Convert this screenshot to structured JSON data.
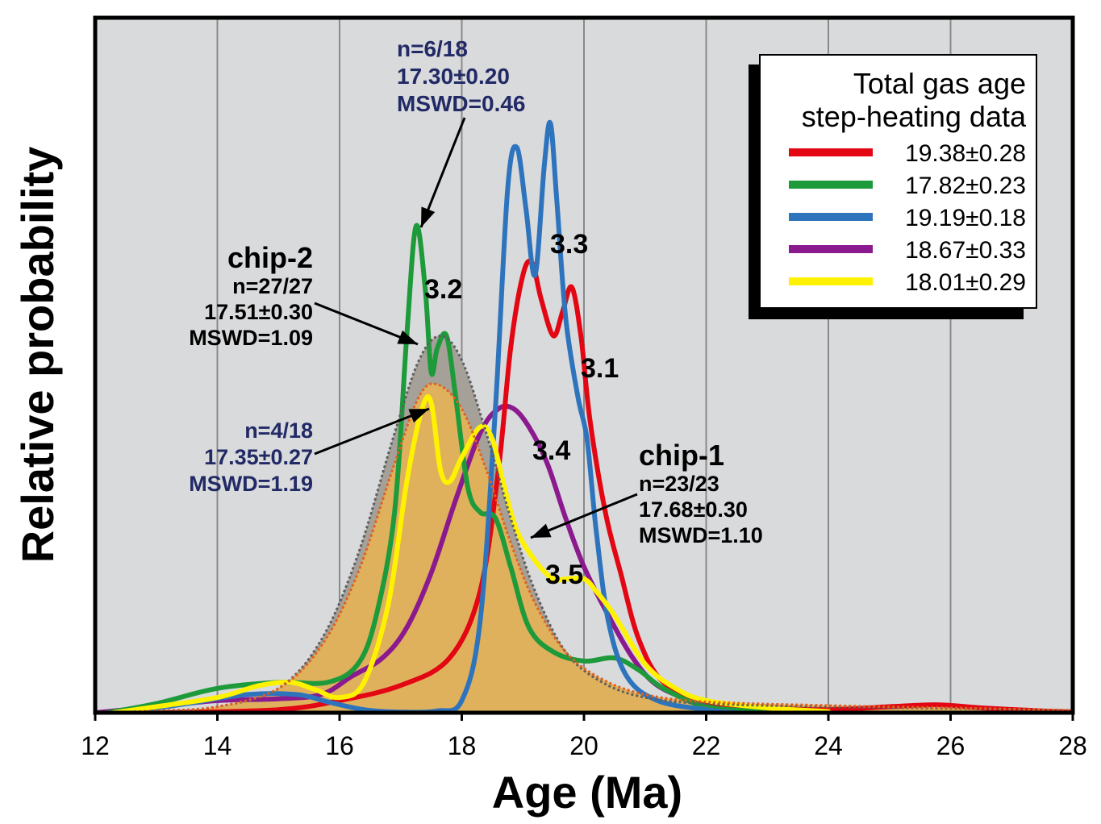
{
  "chart_data": {
    "type": "line",
    "xlabel": "Age (Ma)",
    "ylabel": "Relative probability",
    "xlim": [
      12,
      28
    ],
    "ylim": [
      0,
      1
    ],
    "x_ticks": [
      12,
      14,
      16,
      18,
      20,
      22,
      24,
      26,
      28
    ],
    "grid": "vertical",
    "legend": {
      "position": "top-right",
      "title_lines": [
        "Total gas age",
        "step-heating data"
      ],
      "entries": [
        {
          "label": "19.38±0.28",
          "color": "#e30613"
        },
        {
          "label": "17.82±0.23",
          "color": "#1d9a3a"
        },
        {
          "label": "19.19±0.18",
          "color": "#2e74bd"
        },
        {
          "label": "18.67±0.33",
          "color": "#8b1a8e"
        },
        {
          "label": "18.01±0.29",
          "color": "#fff200"
        }
      ]
    },
    "series": [
      {
        "sample": "3.1",
        "color": "#e30613",
        "points": [
          [
            13.1,
            0
          ],
          [
            15,
            0.005
          ],
          [
            16,
            0.02
          ],
          [
            17,
            0.045
          ],
          [
            17.8,
            0.09
          ],
          [
            18.3,
            0.2
          ],
          [
            18.6,
            0.4
          ],
          [
            18.8,
            0.6
          ],
          [
            19.0,
            0.72
          ],
          [
            19.15,
            0.74
          ],
          [
            19.3,
            0.68
          ],
          [
            19.5,
            0.62
          ],
          [
            19.65,
            0.66
          ],
          [
            19.8,
            0.7
          ],
          [
            19.95,
            0.62
          ],
          [
            20.1,
            0.48
          ],
          [
            20.35,
            0.33
          ],
          [
            20.6,
            0.23
          ],
          [
            20.9,
            0.12
          ],
          [
            21.3,
            0.05
          ],
          [
            22,
            0.018
          ],
          [
            23,
            0.008
          ],
          [
            24,
            0.005
          ],
          [
            25,
            0.01
          ],
          [
            25.8,
            0.013
          ],
          [
            26.5,
            0.008
          ],
          [
            27.5,
            0.003
          ],
          [
            28,
            0.001
          ]
        ]
      },
      {
        "sample": "3.2",
        "color": "#1d9a3a",
        "points": [
          [
            12.2,
            0
          ],
          [
            13,
            0.015
          ],
          [
            14,
            0.04
          ],
          [
            15,
            0.05
          ],
          [
            15.8,
            0.05
          ],
          [
            16.3,
            0.08
          ],
          [
            16.6,
            0.16
          ],
          [
            16.9,
            0.33
          ],
          [
            17.1,
            0.62
          ],
          [
            17.25,
            0.8
          ],
          [
            17.4,
            0.7
          ],
          [
            17.5,
            0.56
          ],
          [
            17.6,
            0.6
          ],
          [
            17.75,
            0.62
          ],
          [
            17.9,
            0.52
          ],
          [
            18.1,
            0.37
          ],
          [
            18.3,
            0.33
          ],
          [
            18.55,
            0.32
          ],
          [
            18.8,
            0.24
          ],
          [
            19.1,
            0.14
          ],
          [
            19.5,
            0.1
          ],
          [
            20,
            0.085
          ],
          [
            20.5,
            0.09
          ],
          [
            20.9,
            0.07
          ],
          [
            21.3,
            0.04
          ],
          [
            22,
            0.01
          ],
          [
            23,
            0.002
          ]
        ]
      },
      {
        "sample": "3.3",
        "color": "#2e74bd",
        "points": [
          [
            12.5,
            0
          ],
          [
            13.5,
            0.015
          ],
          [
            14.5,
            0.03
          ],
          [
            15.3,
            0.03
          ],
          [
            15.8,
            0.018
          ],
          [
            16.4,
            0.005
          ],
          [
            17,
            0.001
          ],
          [
            17.6,
            0.003
          ],
          [
            18.0,
            0.02
          ],
          [
            18.3,
            0.15
          ],
          [
            18.55,
            0.5
          ],
          [
            18.75,
            0.86
          ],
          [
            18.9,
            0.93
          ],
          [
            19.05,
            0.83
          ],
          [
            19.2,
            0.72
          ],
          [
            19.35,
            0.9
          ],
          [
            19.45,
            0.97
          ],
          [
            19.55,
            0.85
          ],
          [
            19.7,
            0.65
          ],
          [
            19.9,
            0.52
          ],
          [
            20.05,
            0.45
          ],
          [
            20.2,
            0.3
          ],
          [
            20.4,
            0.15
          ],
          [
            20.7,
            0.06
          ],
          [
            21.2,
            0.02
          ],
          [
            22,
            0.005
          ],
          [
            22.5,
            0
          ]
        ]
      },
      {
        "sample": "3.4",
        "color": "#8b1a8e",
        "points": [
          [
            12,
            0
          ],
          [
            13,
            0.01
          ],
          [
            14,
            0.02
          ],
          [
            15,
            0.023
          ],
          [
            15.7,
            0.03
          ],
          [
            16.2,
            0.06
          ],
          [
            16.7,
            0.09
          ],
          [
            17.1,
            0.14
          ],
          [
            17.5,
            0.23
          ],
          [
            17.9,
            0.35
          ],
          [
            18.3,
            0.46
          ],
          [
            18.6,
            0.5
          ],
          [
            18.85,
            0.5
          ],
          [
            19.1,
            0.47
          ],
          [
            19.4,
            0.41
          ],
          [
            19.7,
            0.32
          ],
          [
            20.0,
            0.24
          ],
          [
            20.4,
            0.16
          ],
          [
            20.8,
            0.09
          ],
          [
            21.2,
            0.045
          ],
          [
            21.8,
            0.02
          ],
          [
            22.5,
            0.008
          ],
          [
            23.5,
            0.002
          ]
        ]
      },
      {
        "sample": "3.5",
        "color": "#fff200",
        "points": [
          [
            12.3,
            0
          ],
          [
            13,
            0.01
          ],
          [
            14,
            0.025
          ],
          [
            14.7,
            0.045
          ],
          [
            15.2,
            0.05
          ],
          [
            15.6,
            0.038
          ],
          [
            16,
            0.025
          ],
          [
            16.4,
            0.05
          ],
          [
            16.8,
            0.18
          ],
          [
            17.1,
            0.38
          ],
          [
            17.35,
            0.5
          ],
          [
            17.5,
            0.51
          ],
          [
            17.65,
            0.4
          ],
          [
            17.8,
            0.38
          ],
          [
            18.0,
            0.42
          ],
          [
            18.3,
            0.47
          ],
          [
            18.5,
            0.45
          ],
          [
            18.7,
            0.37
          ],
          [
            18.9,
            0.3
          ],
          [
            19.2,
            0.25
          ],
          [
            19.5,
            0.22
          ],
          [
            19.7,
            0.22
          ],
          [
            20.0,
            0.22
          ],
          [
            20.2,
            0.2
          ],
          [
            20.5,
            0.16
          ],
          [
            21.0,
            0.08
          ],
          [
            21.5,
            0.04
          ],
          [
            22,
            0.02
          ],
          [
            23,
            0.008
          ],
          [
            24,
            0.002
          ]
        ]
      },
      {
        "sample": "chip-2",
        "color": "#5e5e5e",
        "style": "dotted",
        "points": [
          [
            12,
            0
          ],
          [
            13,
            0.003
          ],
          [
            14,
            0.01
          ],
          [
            15,
            0.04
          ],
          [
            15.7,
            0.12
          ],
          [
            16.3,
            0.26
          ],
          [
            16.9,
            0.46
          ],
          [
            17.3,
            0.58
          ],
          [
            17.65,
            0.62
          ],
          [
            18.0,
            0.58
          ],
          [
            18.4,
            0.46
          ],
          [
            18.8,
            0.32
          ],
          [
            19.2,
            0.2
          ],
          [
            19.7,
            0.1
          ],
          [
            20.3,
            0.05
          ],
          [
            21,
            0.025
          ],
          [
            22,
            0.015
          ],
          [
            24,
            0.01
          ],
          [
            26,
            0.007
          ],
          [
            28,
            0.004
          ]
        ]
      },
      {
        "sample": "chip-1",
        "color": "#e2601b",
        "style": "dotted",
        "filled": true,
        "points": [
          [
            12,
            0
          ],
          [
            13,
            0.003
          ],
          [
            14,
            0.01
          ],
          [
            15,
            0.04
          ],
          [
            15.7,
            0.11
          ],
          [
            16.3,
            0.23
          ],
          [
            16.9,
            0.41
          ],
          [
            17.3,
            0.52
          ],
          [
            17.6,
            0.54
          ],
          [
            18.0,
            0.5
          ],
          [
            18.4,
            0.4
          ],
          [
            18.8,
            0.28
          ],
          [
            19.2,
            0.18
          ],
          [
            19.7,
            0.1
          ],
          [
            20.3,
            0.055
          ],
          [
            21,
            0.03
          ],
          [
            22,
            0.018
          ],
          [
            24,
            0.012
          ],
          [
            26,
            0.008
          ],
          [
            28,
            0.004
          ]
        ]
      }
    ],
    "annotations": {
      "s31": "3.1",
      "s32": "3.2",
      "s33": "3.3",
      "s34": "3.4",
      "s35": "3.5",
      "chip2": {
        "title": "chip-2",
        "n": "n=27/27",
        "age": "17.51±0.30",
        "mswd": "MSWD=1.09"
      },
      "chip1": {
        "title": "chip-1",
        "n": "n=23/23",
        "age": "17.68±0.30",
        "mswd": "MSWD=1.10"
      },
      "g32": {
        "n": "n=6/18",
        "age": "17.30±0.20",
        "mswd": "MSWD=0.46"
      },
      "g35": {
        "n": "n=4/18",
        "age": "17.35±0.27",
        "mswd": "MSWD=1.19"
      }
    }
  }
}
